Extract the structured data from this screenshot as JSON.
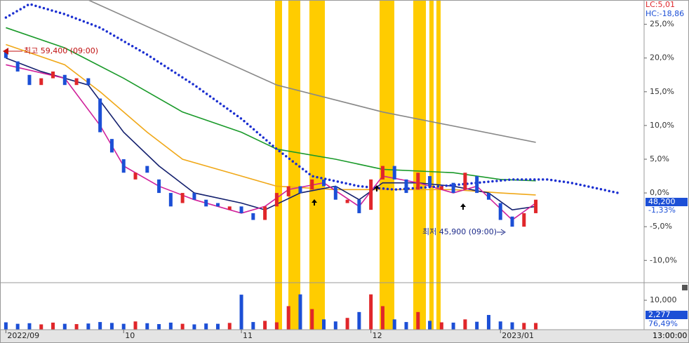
{
  "chart_data": {
    "type": "candlestick",
    "header": [
      "LC:5,01",
      "HC:-18,86"
    ],
    "high_note": "최고 59,400 (09:00)",
    "low_note": "최저 45,900 (09:00)",
    "price_box": "48,200",
    "change_label": "-1,33%",
    "volume_box": "2,277",
    "volume_ratio": "76,49%",
    "time_label": "13:00:00",
    "xlim": [
      -0.5,
      54.2
    ],
    "xticks": [
      {
        "value": 0,
        "label": "2022/09"
      },
      {
        "value": 10,
        "label": "10"
      },
      {
        "value": 20,
        "label": "11"
      },
      {
        "value": 31,
        "label": "12"
      },
      {
        "value": 42,
        "label": "2023/01"
      }
    ],
    "ylim": [
      -13.3,
      28.6
    ],
    "yticks": [
      {
        "value": 25,
        "label": "25,0%"
      },
      {
        "value": 20,
        "label": "20,0%"
      },
      {
        "value": 15,
        "label": "15,0%"
      },
      {
        "value": 10,
        "label": "10,0%"
      },
      {
        "value": 5,
        "label": "5,0%"
      },
      {
        "value": 0,
        "label": "0,0%"
      },
      {
        "value": -5,
        "label": "-5,0%"
      },
      {
        "value": -10,
        "label": "-10,0%"
      }
    ],
    "up_color": "#e0262a",
    "down_color": "#1c4fd6",
    "open": [
      21,
      19.5,
      17.5,
      16,
      17,
      17.5,
      16,
      17,
      14,
      8,
      5,
      2,
      4,
      2,
      0,
      -1.5,
      0,
      -1,
      -1.5,
      -2.5,
      -2,
      -3,
      -4,
      -2,
      -0.5,
      1,
      0.5,
      2,
      1,
      -1.5,
      -1,
      -2.5,
      2,
      4,
      2,
      0.5,
      2.5,
      0.5,
      1.5,
      0.5,
      2.5,
      0,
      -1.5,
      -3.5,
      -5,
      -3
    ],
    "close": [
      20,
      18,
      16,
      17,
      18,
      16,
      17,
      16,
      9,
      6,
      3,
      3,
      3,
      0,
      -2,
      0,
      -1,
      -2,
      -2,
      -2,
      -3,
      -4,
      -2,
      0,
      1,
      0,
      2,
      1,
      -1,
      -1,
      -3,
      2,
      4,
      2,
      0,
      3,
      1,
      1,
      0,
      3,
      0,
      -1,
      -4,
      -5,
      -3,
      -1
    ],
    "series": [
      {
        "color": "#888888",
        "style": "solid",
        "x": [
          7,
          23,
          32,
          45
        ],
        "values": [
          28.6,
          16,
          12,
          7.5
        ]
      },
      {
        "color": "#1a9a2a",
        "style": "solid",
        "x": [
          0,
          5,
          10,
          15,
          20,
          23,
          28,
          32,
          38,
          42,
          45
        ],
        "values": [
          24.5,
          21.5,
          17,
          12,
          9,
          6.5,
          5,
          3.5,
          3,
          2,
          1.8
        ]
      },
      {
        "color": "#f0a818",
        "style": "solid",
        "x": [
          0,
          5,
          8,
          12,
          15,
          20,
          23,
          28,
          33,
          38,
          42,
          45
        ],
        "values": [
          22,
          19,
          15,
          9,
          5,
          2.5,
          1,
          0.5,
          0.5,
          0.5,
          0,
          -0.3
        ]
      },
      {
        "color": "#14206e",
        "style": "solid",
        "x": [
          0,
          3,
          7,
          10,
          13,
          16,
          20,
          22,
          25,
          28,
          30,
          32,
          35,
          38,
          41,
          43,
          45
        ],
        "values": [
          20,
          18,
          16,
          9,
          4,
          0,
          -1.5,
          -2.5,
          0,
          1,
          -1,
          1.5,
          1.5,
          1,
          0,
          -2.5,
          -2
        ]
      },
      {
        "color": "#d0209a",
        "style": "solid",
        "x": [
          0,
          5,
          8,
          10,
          13,
          16,
          20,
          22,
          24,
          27,
          30,
          32,
          35,
          38,
          40,
          43,
          45
        ],
        "values": [
          19,
          17,
          10,
          4,
          1,
          -1,
          -3,
          -2,
          0.5,
          1.5,
          -2,
          2.5,
          1.5,
          0,
          1,
          -4,
          -1.5
        ]
      },
      {
        "color": "#1a2ed0",
        "style": "dotted",
        "x": [
          0,
          2,
          5,
          8,
          12,
          16,
          20,
          23,
          26,
          30,
          33,
          37,
          40,
          43,
          46,
          48,
          52
        ],
        "values": [
          26,
          28,
          26.5,
          24.5,
          20.5,
          16,
          11,
          6.5,
          2.5,
          1,
          0.5,
          1,
          1.5,
          2,
          2,
          1.5,
          0
        ]
      }
    ],
    "volume": [
      2500,
      2000,
      2200,
      1800,
      2400,
      2000,
      1900,
      2100,
      2600,
      2300,
      2000,
      2800,
      2200,
      1900,
      2400,
      2000,
      1800,
      2100,
      2000,
      2300,
      11900,
      2600,
      3000,
      2500,
      8000,
      12000,
      7000,
      3500,
      2800,
      4000,
      6000,
      12000,
      8000,
      3500,
      2600,
      6000,
      3000,
      2500,
      2400,
      3500,
      2700,
      5000,
      2800,
      2500,
      2300,
      2277
    ],
    "vlim": [
      0,
      15500
    ],
    "vticks": [
      {
        "value": 10000,
        "label": "10,000"
      }
    ]
  }
}
